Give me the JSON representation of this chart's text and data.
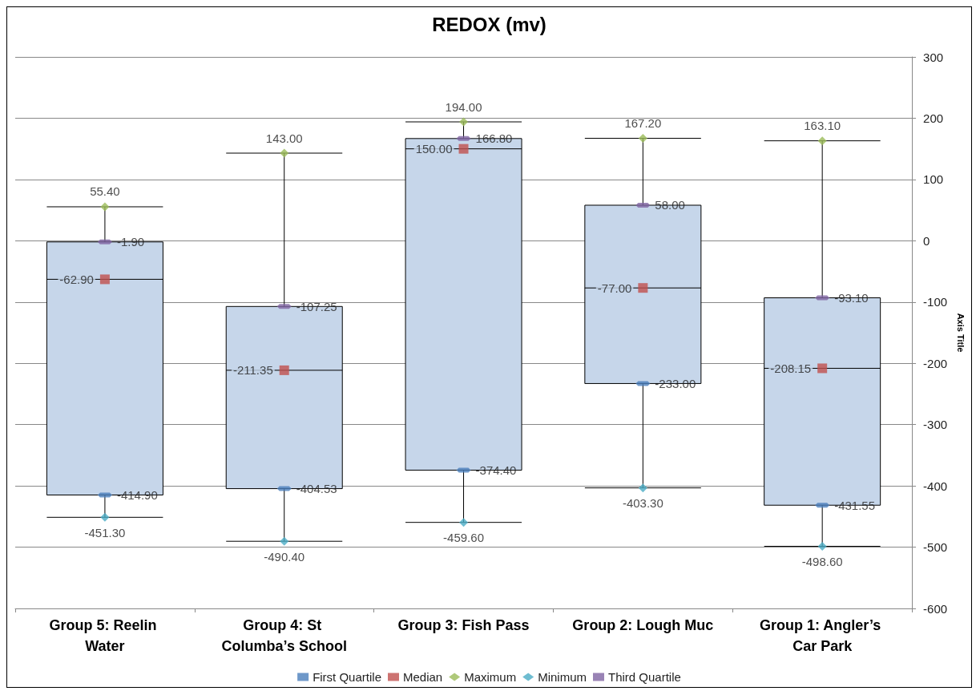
{
  "chart_data": {
    "type": "box",
    "title": "REDOX (mv)",
    "y2label": "Axis Title",
    "categories": [
      "Group 5: Reelin Water",
      "Group 4: St Columba’s School",
      "Group 3: Fish Pass",
      "Group 2: Lough Muc",
      "Group 1: Angler’s Car Park"
    ],
    "ylim": [
      -600,
      300
    ],
    "yticks": [
      -600,
      -500,
      -400,
      -300,
      -200,
      -100,
      0,
      100,
      200,
      300
    ],
    "grid": "y",
    "legend": "bottom",
    "series": [
      {
        "color": "#c6d6ea",
        "boxes": [
          {
            "low": -451.3,
            "q1": -414.9,
            "median": -62.9,
            "q3": -1.9,
            "high": 55.4
          },
          {
            "low": -490.4,
            "q1": -404.53,
            "median": -211.35,
            "q3": -107.25,
            "high": 143
          },
          {
            "low": -459.6,
            "q1": -374.4,
            "median": 150,
            "q3": 166.8,
            "high": 194
          },
          {
            "low": -403.3,
            "q1": -233,
            "median": -77,
            "q3": 58,
            "high": 167.2
          },
          {
            "low": -498.6,
            "q1": -431.55,
            "median": -208.15,
            "q3": -93.1,
            "high": 163.1
          }
        ]
      },
      {
        "type": "scatter",
        "name": "First Quartile",
        "color": "#4a7ebb",
        "values": [
          -414.9,
          -404.53,
          -374.4,
          -233,
          -431.55
        ],
        "value_labels": [
          "-414.90",
          "-404.53",
          "-374.40",
          "-233.00",
          "-431.55"
        ]
      },
      {
        "type": "scatter",
        "name": "Median",
        "color": "#c0504d",
        "marker": "square",
        "values": [
          -62.9,
          -211.35,
          150,
          -77,
          -208.15
        ],
        "value_labels": [
          "-62.90",
          "-211.35",
          "150.00",
          "-77.00",
          "-208.15"
        ]
      },
      {
        "type": "scatter",
        "name": "Maximum",
        "color": "#9bbb59",
        "marker": "diamond",
        "values": [
          55.4,
          143,
          194,
          167.2,
          163.1
        ],
        "value_labels": [
          "55.40",
          "143.00",
          "194.00",
          "167.20",
          "163.10"
        ]
      },
      {
        "type": "scatter",
        "name": "Minimum",
        "color": "#4bacc6",
        "marker": "diamond",
        "values": [
          -451.3,
          -490.4,
          -459.6,
          -403.3,
          -498.6
        ],
        "value_labels": [
          "-451.30",
          "-490.40",
          "-459.60",
          "-403.30",
          "-498.60"
        ]
      },
      {
        "type": "scatter",
        "name": "Third Quartile",
        "color": "#8064a2",
        "values": [
          -1.9,
          -107.25,
          166.8,
          58,
          -93.1
        ],
        "value_labels": [
          "-1.90",
          "-107.25",
          "166.80",
          "58.00",
          "-93.10"
        ]
      }
    ]
  }
}
